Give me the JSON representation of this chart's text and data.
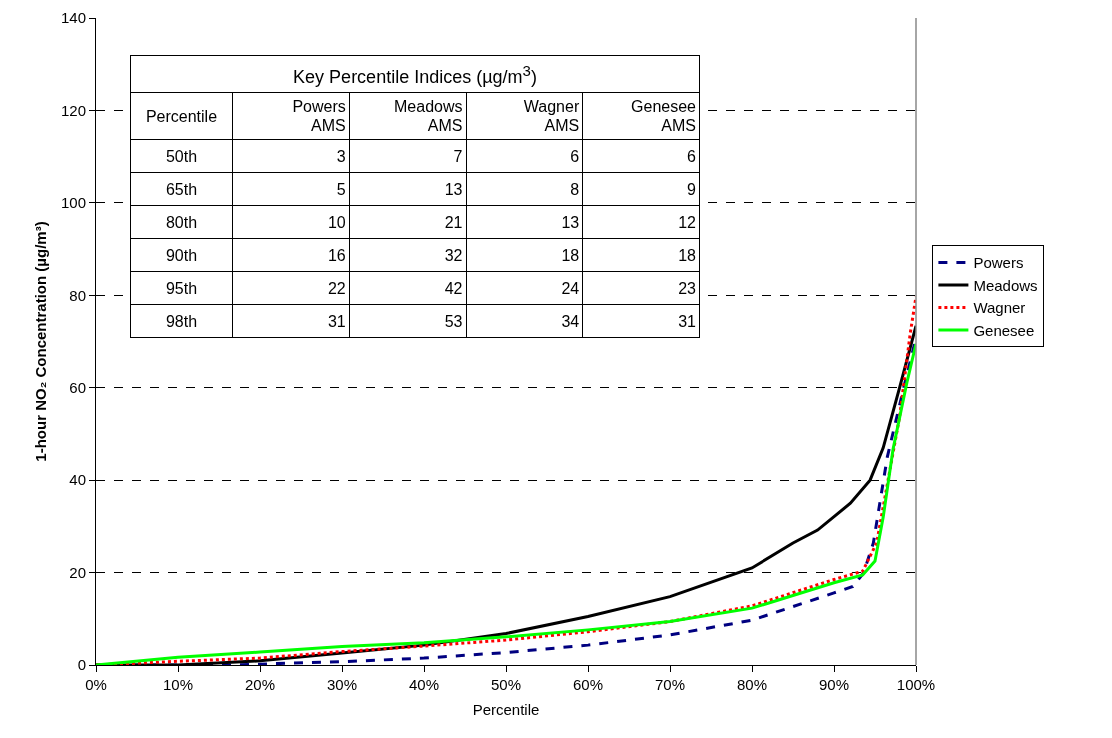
{
  "chart_data": [
    {
      "type": "line",
      "xlabel": "Percentile",
      "ylabel": "1-hour NO₂ Concentration (µg/m³)",
      "xlim": [
        0,
        100
      ],
      "xticks": [
        {
          "value": 0,
          "label": "0%"
        },
        {
          "value": 10,
          "label": "10%"
        },
        {
          "value": 20,
          "label": "20%"
        },
        {
          "value": 30,
          "label": "30%"
        },
        {
          "value": 40,
          "label": "40%"
        },
        {
          "value": 50,
          "label": "50%"
        },
        {
          "value": 60,
          "label": "60%"
        },
        {
          "value": 70,
          "label": "70%"
        },
        {
          "value": 80,
          "label": "80%"
        },
        {
          "value": 90,
          "label": "90%"
        },
        {
          "value": 100,
          "label": "100%"
        }
      ],
      "ylim": [
        0,
        140
      ],
      "yticks": [
        0,
        20,
        40,
        60,
        80,
        100,
        120,
        140
      ],
      "grid": "y",
      "legend": "right",
      "marker": "none",
      "series": [
        {
          "name": "Powers",
          "color": "#000080",
          "line_style": "dashed",
          "x": [
            0,
            16,
            30,
            40,
            50,
            60,
            70,
            80,
            90,
            92.3,
            93.6,
            94.8,
            96.5,
            98.5,
            100
          ],
          "values": [
            0,
            0,
            0.7,
            1.5,
            2.7,
            4.3,
            6.5,
            9.7,
            15.6,
            17,
            19.9,
            26.4,
            45,
            60,
            70.8
          ]
        },
        {
          "name": "Meadows",
          "color": "#000000",
          "line_style": "solid",
          "x": [
            0,
            10,
            20,
            30,
            40,
            50,
            60,
            70,
            80,
            85,
            88,
            92,
            94.4,
            96,
            98,
            100
          ],
          "values": [
            0,
            0,
            0.9,
            2.6,
            4.3,
            6.8,
            10.5,
            14.8,
            21,
            26.4,
            29.2,
            35,
            40,
            47,
            60,
            73.4
          ]
        },
        {
          "name": "Wagner",
          "color": "#ff0000",
          "line_style": "dotted",
          "x": [
            0,
            10,
            20,
            30,
            40,
            50,
            60,
            70,
            80,
            90,
            93.5,
            95.2,
            96.8,
            98,
            99.3,
            100
          ],
          "values": [
            0,
            0.8,
            1.5,
            2.9,
            4.1,
            5.4,
            7.2,
            9.4,
            12.8,
            18.5,
            20.3,
            26.4,
            42,
            53.7,
            71.8,
            79.7
          ]
        },
        {
          "name": "Genesee",
          "color": "#00ff00",
          "line_style": "solid",
          "x": [
            0,
            10,
            20,
            30,
            40,
            50,
            60,
            70,
            80,
            90,
            93.5,
            95,
            96,
            97.2,
            98.9,
            100
          ],
          "values": [
            0,
            1.7,
            2.8,
            4,
            4.8,
            6.1,
            7.6,
            9.4,
            12.3,
            17.8,
            19.5,
            22.5,
            32,
            46.7,
            61.2,
            69.5
          ]
        }
      ]
    },
    {
      "type": "heatmap",
      "data_labels": true,
      "title": "Key Percentile Indices (µg/m$^{3}$)",
      "ylabel": "Percentile",
      "categories": [
        "Powers AMS",
        "Meadows AMS",
        "Wagner AMS",
        "Genesee AMS"
      ],
      "y_categories": [
        "50th",
        "65th",
        "80th",
        "90th",
        "95th",
        "98th"
      ],
      "cells": [
        [
          3,
          7,
          6,
          6
        ],
        [
          5,
          13,
          8,
          9
        ],
        [
          10,
          21,
          13,
          12
        ],
        [
          16,
          32,
          18,
          18
        ],
        [
          22,
          42,
          24,
          23
        ],
        [
          31,
          53,
          34,
          31
        ]
      ]
    }
  ]
}
